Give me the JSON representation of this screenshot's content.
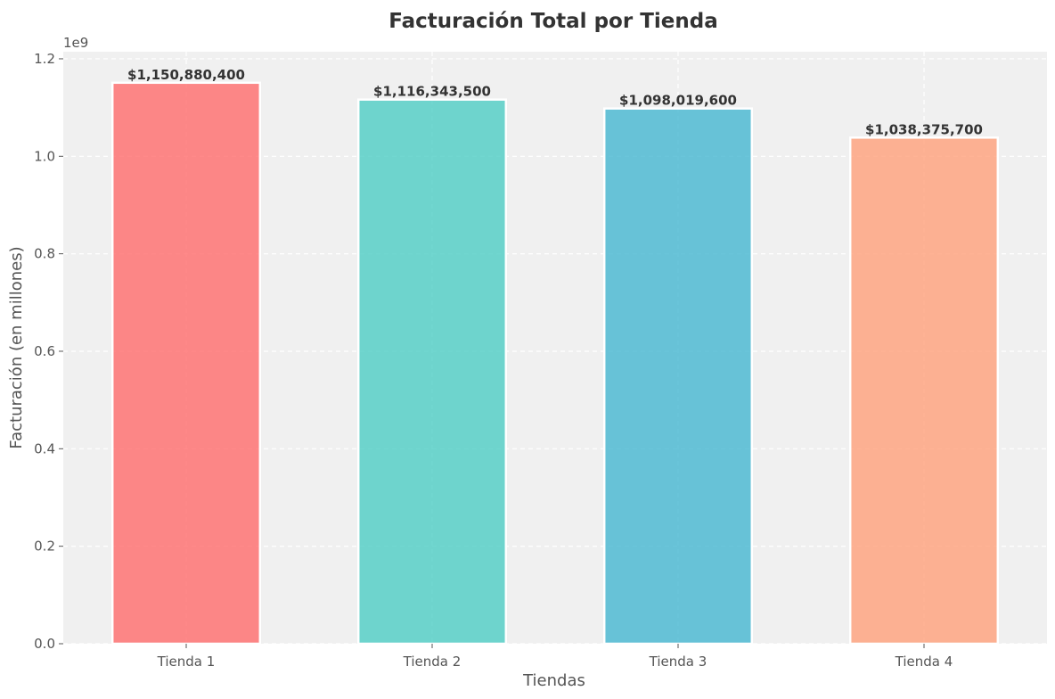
{
  "chart_data": {
    "type": "bar",
    "title": "Facturación Total por Tienda",
    "xlabel": "Tiendas",
    "ylabel": "Facturación (en millones)",
    "y_offset_label": "1e9",
    "categories": [
      "Tienda 1",
      "Tienda 2",
      "Tienda 3",
      "Tienda 4"
    ],
    "values": [
      1150880400,
      1116343500,
      1098019600,
      1038375700
    ],
    "value_labels": [
      "$1,150,880,400",
      "$1,116,343,500",
      "$1,098,019,600",
      "$1,038,375,700"
    ],
    "colors": [
      "#FF6B6B",
      "#4ECDC4",
      "#45B7D1",
      "#FFA07A"
    ],
    "ylim": [
      0,
      1200000000
    ],
    "y_ticks": [
      0,
      200000000,
      400000000,
      600000000,
      800000000,
      1000000000,
      1200000000
    ],
    "y_tick_labels": [
      "0.0",
      "0.2",
      "0.4",
      "0.6",
      "0.8",
      "1.0",
      "1.2"
    ],
    "grid": true,
    "grid_style": "dashed",
    "background_color": "#F0F0F0"
  }
}
